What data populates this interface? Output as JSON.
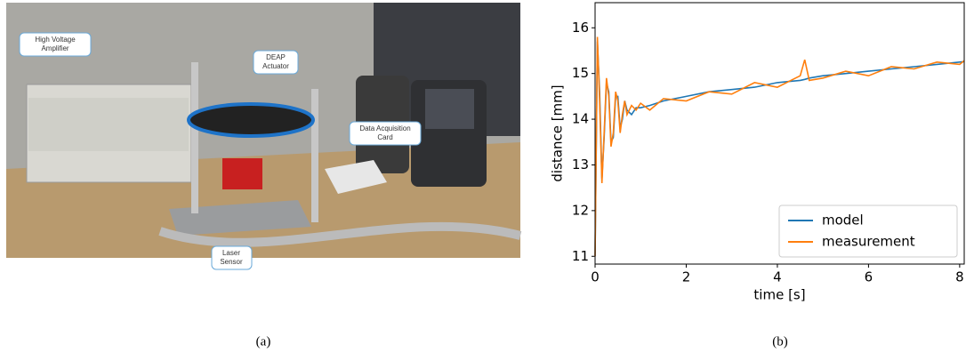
{
  "photo": {
    "callouts": [
      [
        "High Voltage",
        "Amplifier"
      ],
      [
        "DEAP",
        "Actuator"
      ],
      [
        "Data Acquisition",
        "Card"
      ],
      [
        "Laser",
        "Sensor"
      ]
    ],
    "caption": "(a)"
  },
  "chart_data": {
    "type": "line",
    "x_label": "time [s]",
    "y_label": "distance [mm]",
    "caption": "(b)",
    "xlim": [
      0,
      8.1
    ],
    "ylim": [
      10.83,
      16.55
    ],
    "xticks": [
      0,
      2,
      4,
      6,
      8
    ],
    "yticks": [
      11,
      12,
      13,
      14,
      15,
      16
    ],
    "legend": "lower right",
    "x": [
      0,
      0.05,
      0.1,
      0.15,
      0.2,
      0.25,
      0.3,
      0.35,
      0.4,
      0.45,
      0.5,
      0.55,
      0.6,
      0.65,
      0.7,
      0.8,
      0.9,
      1.0,
      1.2,
      1.5,
      2,
      2.5,
      3,
      3.5,
      4,
      4.5,
      4.6,
      4.7,
      5,
      5.5,
      6,
      6.5,
      7,
      7.5,
      8,
      8.1
    ],
    "series": [
      {
        "name": "model",
        "color": "#1f77b4",
        "values": [
          11.0,
          15.7,
          14.6,
          12.7,
          13.6,
          14.8,
          14.6,
          13.5,
          13.6,
          14.5,
          14.5,
          13.8,
          14.0,
          14.4,
          14.2,
          14.1,
          14.25,
          14.25,
          14.3,
          14.4,
          14.5,
          14.6,
          14.65,
          14.7,
          14.8,
          14.85,
          14.87,
          14.9,
          14.95,
          15.0,
          15.05,
          15.1,
          15.15,
          15.2,
          15.25,
          15.26
        ]
      },
      {
        "name": "measurement",
        "color": "#ff7f0e",
        "values": [
          11.0,
          15.8,
          14.4,
          12.6,
          13.7,
          14.9,
          14.5,
          13.4,
          13.7,
          14.6,
          14.4,
          13.7,
          14.1,
          14.4,
          14.1,
          14.3,
          14.2,
          14.35,
          14.2,
          14.45,
          14.4,
          14.6,
          14.55,
          14.8,
          14.7,
          14.95,
          15.3,
          14.85,
          14.9,
          15.05,
          14.95,
          15.15,
          15.1,
          15.25,
          15.2,
          15.28
        ]
      }
    ]
  }
}
